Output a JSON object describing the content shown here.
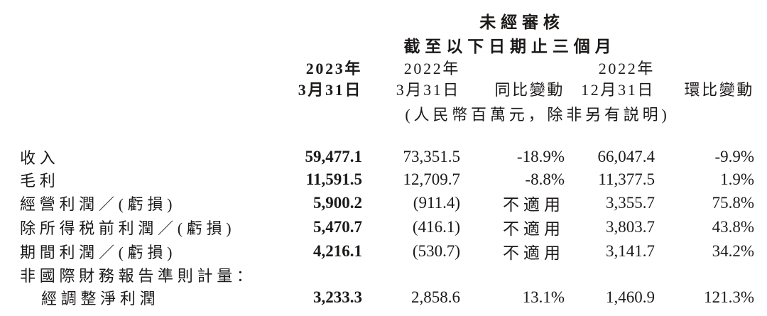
{
  "table": {
    "header": {
      "unaudited": "未經審核",
      "period": "截至以下日期止三個月",
      "columns": [
        {
          "line1": "2023年",
          "line2": "3月31日"
        },
        {
          "line1": "2022年",
          "line2": "3月31日"
        },
        {
          "line1": "",
          "line2": "同比變動"
        },
        {
          "line1": "2022年",
          "line2": "12月31日"
        },
        {
          "line1": "",
          "line2": "環比變動"
        }
      ],
      "unit_note": "(人民幣百萬元，除非另有説明)"
    },
    "rows": [
      {
        "label": "收入",
        "values": [
          "59,477.1",
          "73,351.5",
          "-18.9%",
          "66,047.4",
          "-9.9%"
        ]
      },
      {
        "label": "毛利",
        "values": [
          "11,591.5",
          "12,709.7",
          "-8.8%",
          "11,377.5",
          "1.9%"
        ]
      },
      {
        "label": "經營利潤／(虧損)",
        "values": [
          "5,900.2",
          "(911.4)",
          "不適用",
          "3,355.7",
          "75.8%"
        ]
      },
      {
        "label": "除所得税前利潤／(虧損)",
        "values": [
          "5,470.7",
          "(416.1)",
          "不適用",
          "3,803.7",
          "43.8%"
        ]
      },
      {
        "label": "期間利潤／(虧損)",
        "values": [
          "4,216.1",
          "(530.7)",
          "不適用",
          "3,141.7",
          "34.2%"
        ]
      },
      {
        "label": "非國際財務報告準則計量：",
        "values": [
          "",
          "",
          "",
          "",
          ""
        ]
      },
      {
        "label": "經調整淨利潤",
        "values": [
          "3,233.3",
          "2,858.6",
          "13.1%",
          "1,460.9",
          "121.3%"
        ]
      }
    ],
    "text_color": "#1c1a19",
    "background_color": "#ffffff"
  }
}
